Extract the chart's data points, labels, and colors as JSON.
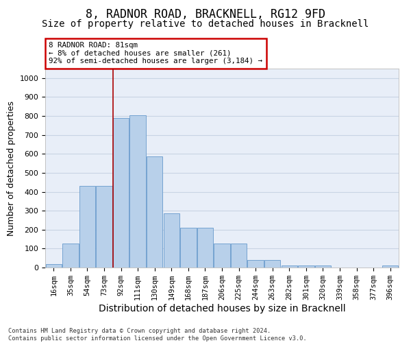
{
  "title": "8, RADNOR ROAD, BRACKNELL, RG12 9FD",
  "subtitle": "Size of property relative to detached houses in Bracknell",
  "xlabel_bottom": "Distribution of detached houses by size in Bracknell",
  "ylabel": "Number of detached properties",
  "footer_line1": "Contains HM Land Registry data © Crown copyright and database right 2024.",
  "footer_line2": "Contains public sector information licensed under the Open Government Licence v3.0.",
  "bar_labels": [
    "16sqm",
    "35sqm",
    "54sqm",
    "73sqm",
    "92sqm",
    "111sqm",
    "130sqm",
    "149sqm",
    "168sqm",
    "187sqm",
    "206sqm",
    "225sqm",
    "244sqm",
    "263sqm",
    "282sqm",
    "301sqm",
    "320sqm",
    "339sqm",
    "358sqm",
    "377sqm",
    "396sqm"
  ],
  "bar_values": [
    18,
    125,
    430,
    430,
    790,
    805,
    585,
    285,
    210,
    210,
    125,
    125,
    40,
    40,
    12,
    10,
    10,
    0,
    0,
    0,
    10
  ],
  "bar_color": "#b8d0ea",
  "bar_edgecolor": "#6699cc",
  "annotation_box_text": "8 RADNOR ROAD: 81sqm\n← 8% of detached houses are smaller (261)\n92% of semi-detached houses are larger (3,184) →",
  "annotation_box_color": "#cc0000",
  "vline_index": 4,
  "vline_color": "#aa0000",
  "ylim": [
    0,
    1050
  ],
  "yticks": [
    0,
    100,
    200,
    300,
    400,
    500,
    600,
    700,
    800,
    900,
    1000
  ],
  "grid_color": "#c8d4e4",
  "background_color": "#e8eef8",
  "title_fontsize": 12,
  "subtitle_fontsize": 10,
  "axis_label_fontsize": 9,
  "tick_fontsize": 7.5,
  "footer_fontsize": 6.2
}
